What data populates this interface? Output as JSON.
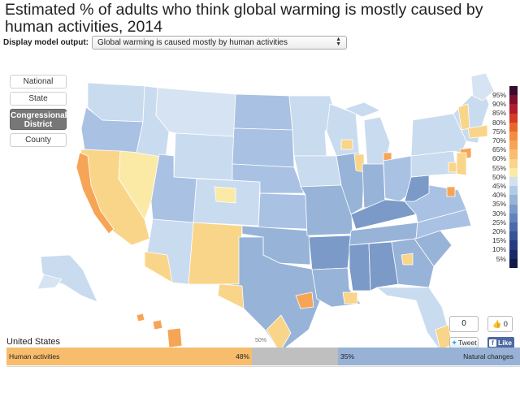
{
  "title": "Estimated % of adults who think global warming is mostly caused by human activities, 2014",
  "model_output": {
    "label": "Display model output:",
    "selected": "Global warming is caused mostly by human activities"
  },
  "geo_buttons": [
    {
      "label": "National",
      "active": false
    },
    {
      "label": "State",
      "active": false
    },
    {
      "label": "Congressional District",
      "active": true
    },
    {
      "label": "County",
      "active": false
    }
  ],
  "legend": {
    "entries": [
      {
        "label": "95%",
        "color": "#3b0a2e"
      },
      {
        "label": "90%",
        "color": "#7b0f2e"
      },
      {
        "label": "85%",
        "color": "#b01c2a"
      },
      {
        "label": "80%",
        "color": "#d43a26"
      },
      {
        "label": "75%",
        "color": "#e9672b"
      },
      {
        "label": "70%",
        "color": "#f28e3f"
      },
      {
        "label": "65%",
        "color": "#f6a556"
      },
      {
        "label": "60%",
        "color": "#f8bd6e"
      },
      {
        "label": "55%",
        "color": "#f9d58a"
      },
      {
        "label": "50%",
        "color": "#fbeaa6"
      },
      {
        "label": "45%",
        "color": "#d2e0f0"
      },
      {
        "label": "40%",
        "color": "#b3cae6"
      },
      {
        "label": "35%",
        "color": "#97b3d8"
      },
      {
        "label": "30%",
        "color": "#7b9ac8"
      },
      {
        "label": "25%",
        "color": "#6282b9"
      },
      {
        "label": "20%",
        "color": "#4b6aa8"
      },
      {
        "label": "15%",
        "color": "#375396"
      },
      {
        "label": "10%",
        "color": "#263d80"
      },
      {
        "label": "5%",
        "color": "#1a2a66"
      },
      {
        "label": "",
        "color": "#0f1a4a"
      }
    ]
  },
  "social": {
    "tweet_count": "0",
    "tweet_label": "Tweet",
    "like_count": "0",
    "like_label": "Like"
  },
  "summary": {
    "region": "United States",
    "midpoint_label": "50%",
    "human_label": "Human activities",
    "human_pct": "48%",
    "human_value": 48,
    "natural_label": "Natural changes",
    "natural_pct": "35%",
    "natural_value": 35,
    "colors": {
      "human": "#f7bd6c",
      "natural": "#98b2d6",
      "undecided": "#bfbfbf"
    }
  }
}
